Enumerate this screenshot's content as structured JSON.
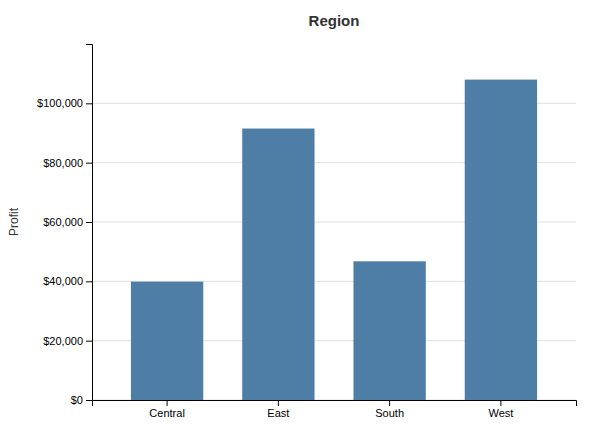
{
  "chart_data": {
    "type": "bar",
    "title": "Region",
    "categories": [
      "Central",
      "East",
      "South",
      "West"
    ],
    "values": [
      39900,
      91500,
      46750,
      108000
    ],
    "color": "#4e7da6",
    "ylabel": "Profit",
    "ylim": [
      0,
      120000
    ],
    "yticks": [
      {
        "value": 0,
        "label": "$0"
      },
      {
        "value": 20000,
        "label": "$20,000"
      },
      {
        "value": 40000,
        "label": "$40,000"
      },
      {
        "value": 60000,
        "label": "$60,000"
      },
      {
        "value": 80000,
        "label": "$80,000"
      },
      {
        "value": 100000,
        "label": "$100,000"
      }
    ],
    "grid": true
  }
}
